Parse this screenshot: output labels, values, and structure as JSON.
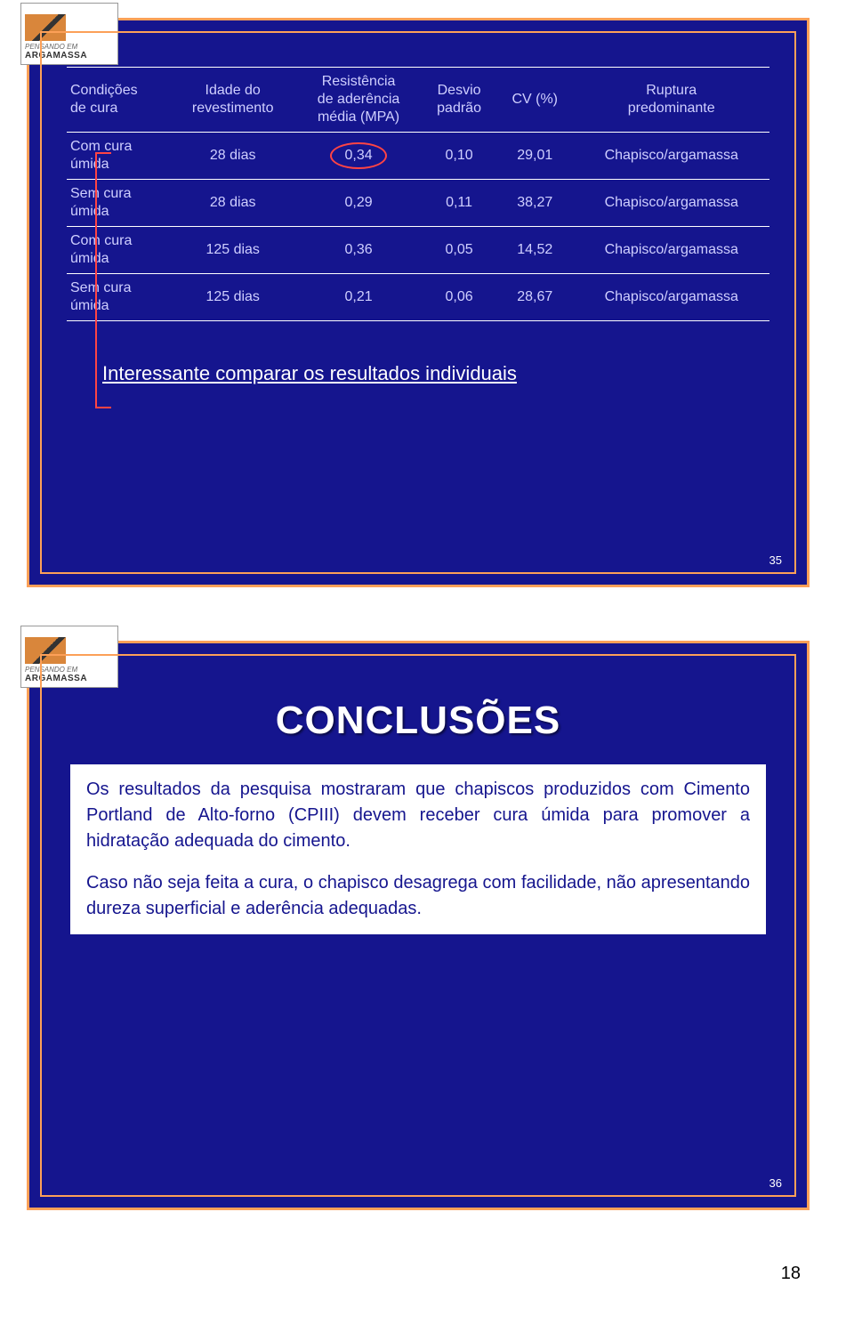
{
  "logo": {
    "line1": "PENSANDO EM",
    "line2": "ARGAMASSA"
  },
  "slide1": {
    "number": "35",
    "headers": {
      "c0a": "Condições",
      "c0b": "de cura",
      "c1a": "Idade do",
      "c1b": "revestimento",
      "c2a": "Resistência",
      "c2b": "de aderência",
      "c2c": "média (MPA)",
      "c3a": "Desvio",
      "c3b": "padrão",
      "c4": "CV (%)",
      "c5a": "Ruptura",
      "c5b": "predominante"
    },
    "rows": [
      {
        "c0a": "Com cura",
        "c0b": "úmida",
        "c1": "28 dias",
        "c2": "0,34",
        "c3": "0,10",
        "c4": "29,01",
        "c5": "Chapisco/argamassa",
        "circle": true
      },
      {
        "c0a": "Sem cura",
        "c0b": "úmida",
        "c1": "28 dias",
        "c2": "0,29",
        "c3": "0,11",
        "c4": "38,27",
        "c5": "Chapisco/argamassa"
      },
      {
        "c0a": "Com cura",
        "c0b": "úmida",
        "c1": "125 dias",
        "c2": "0,36",
        "c3": "0,05",
        "c4": "14,52",
        "c5": "Chapisco/argamassa"
      },
      {
        "c0a": "Sem cura",
        "c0b": "úmida",
        "c1": "125 dias",
        "c2": "0,21",
        "c3": "0,06",
        "c4": "28,67",
        "c5": "Chapisco/argamassa"
      }
    ],
    "caption": "Interessante comparar os resultados individuais"
  },
  "slide2": {
    "number": "36",
    "title": "CONCLUSÕES",
    "p1": "Os resultados da pesquisa mostraram que chapiscos produzidos com Cimento Portland de Alto-forno (CPIII) devem receber cura úmida para promover a hidratação adequada do cimento.",
    "p2": "Caso não seja feita a cura, o chapisco desagrega com facilidade, não apresentando dureza superficial e aderência adequadas."
  },
  "pageNumber": "18",
  "colors": {
    "slide_bg": "#15158e",
    "slide_border": "#fca058",
    "text_light": "#cfcfff",
    "highlight": "#ff4444"
  }
}
